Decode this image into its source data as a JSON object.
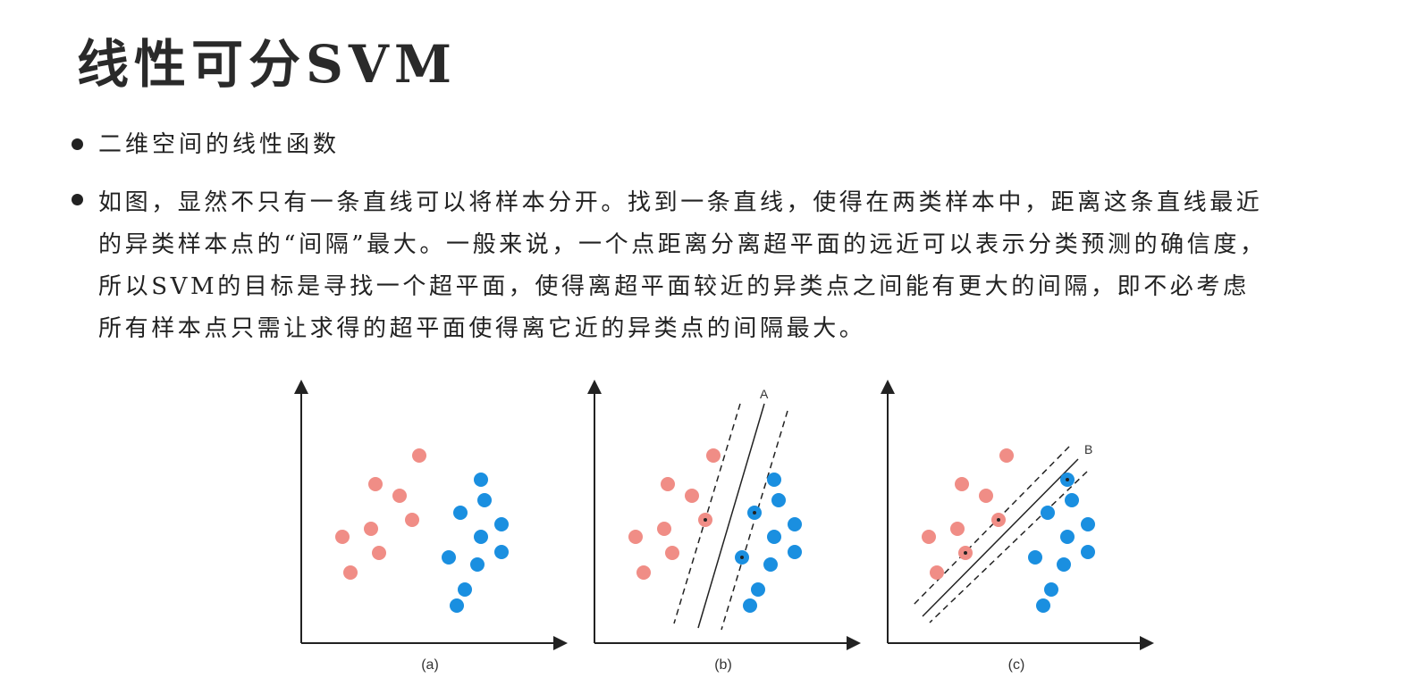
{
  "title": "线性可分SVM",
  "bullets": [
    {
      "lines": [
        "二维空间的线性函数"
      ]
    },
    {
      "lines": [
        "如图，显然不只有一条直线可以将样本分开。找到一条直线，使得在两类样本中，距离这条直线最近",
        "的异类样本点的“间隔”最大。一般来说，一个点距离分离超平面的远近可以表示分类预测的确信度，",
        "所以SVM的目标是寻找一个超平面，使得离超平面较近的异类点之间能有更大的间隔，即不必考虑",
        "所有样本点只需让求得的超平面使得离它近的异类点的间隔最大。"
      ]
    }
  ],
  "colors": {
    "class_red": "#f08d86",
    "class_blue": "#1a8fe0",
    "axis": "#222222"
  },
  "figures": [
    {
      "caption": "(a)",
      "line_label": ""
    },
    {
      "caption": "(b)",
      "line_label": "A"
    },
    {
      "caption": "(c)",
      "line_label": "B"
    }
  ]
}
